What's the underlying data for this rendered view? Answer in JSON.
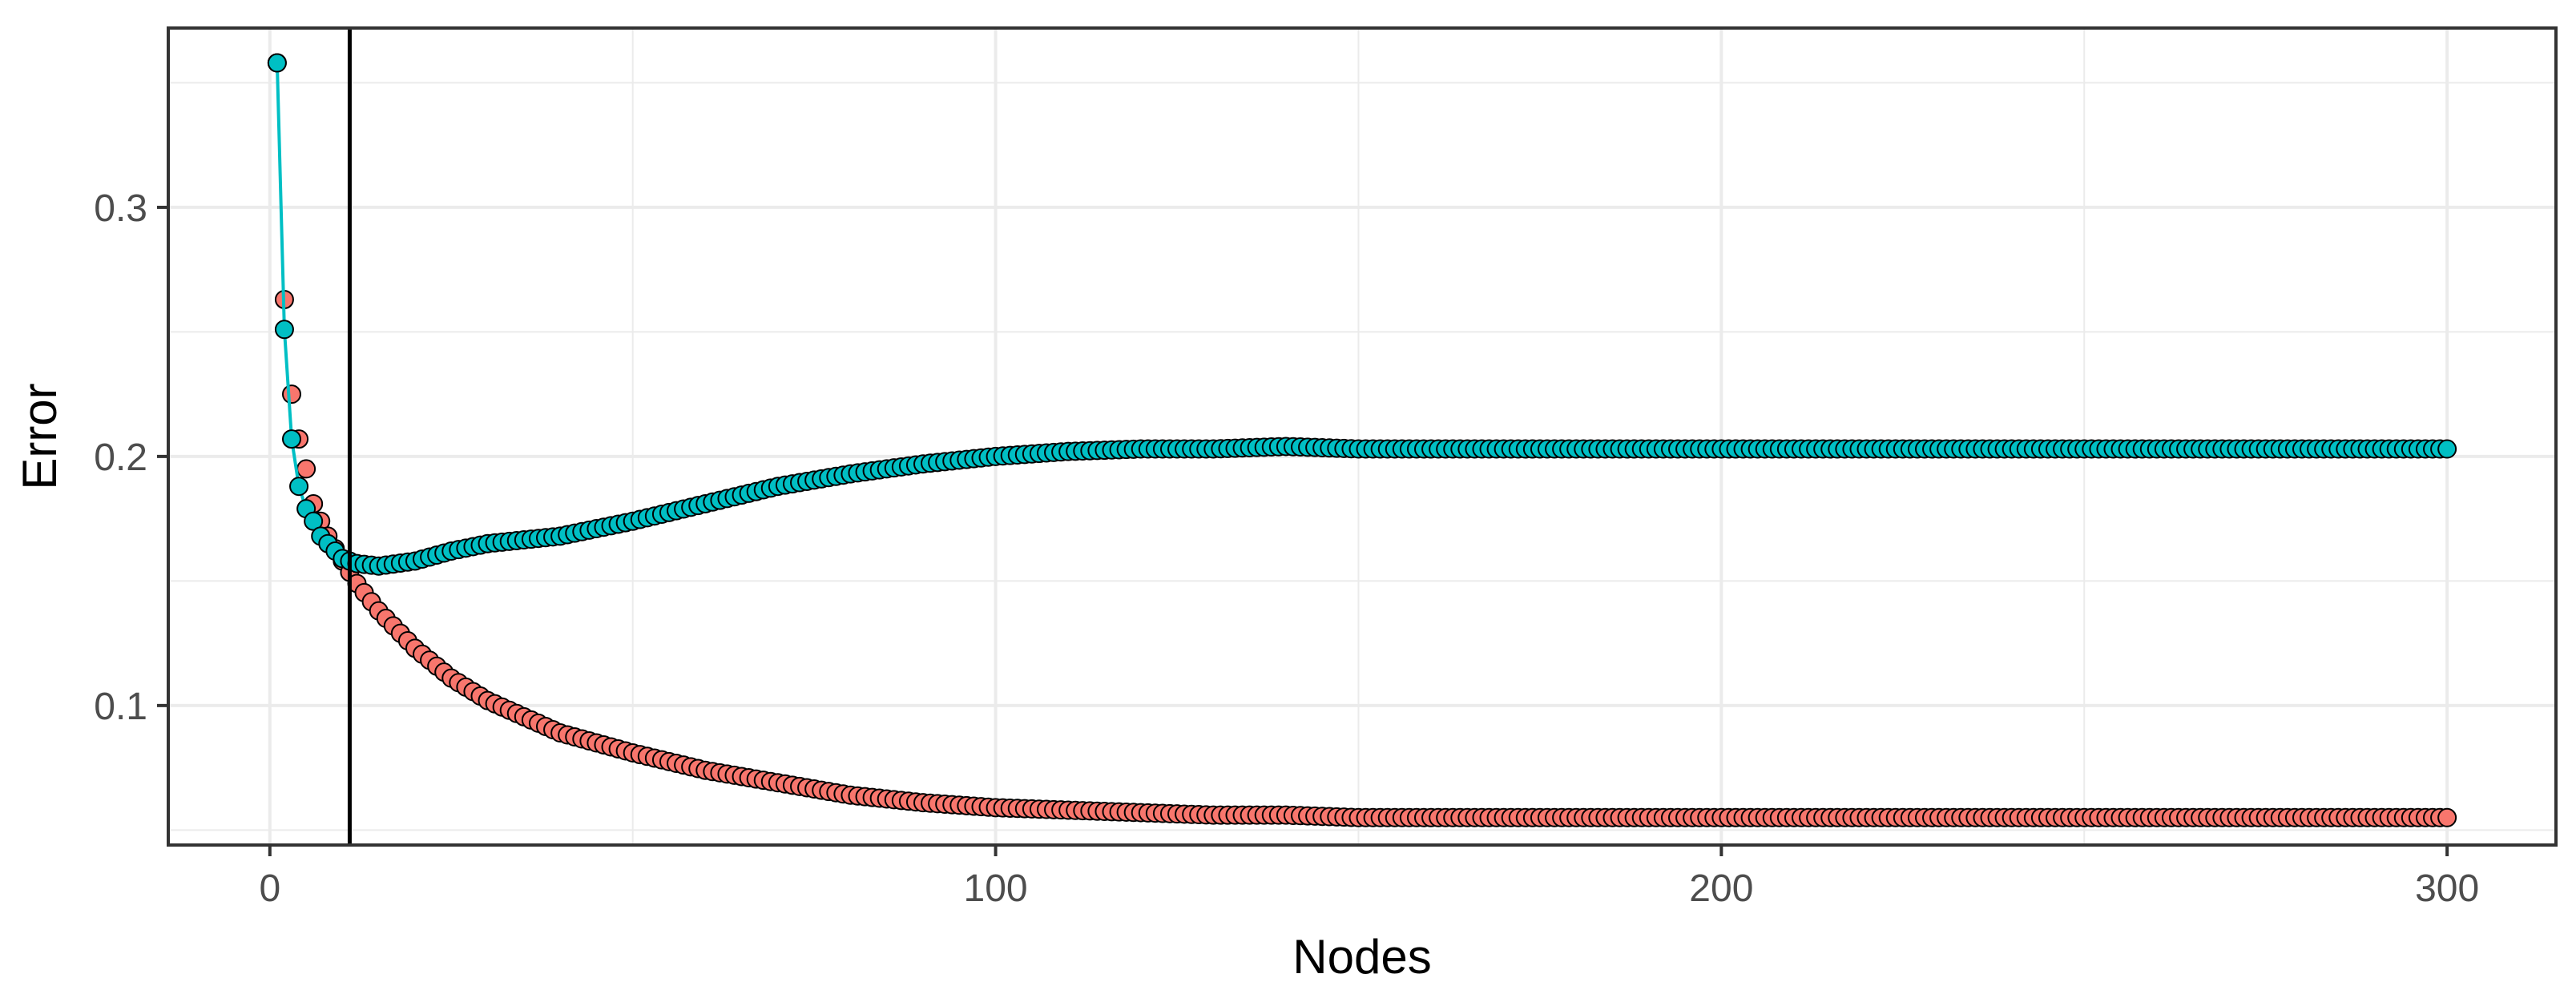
{
  "chart_data": {
    "type": "scatter",
    "title": "",
    "xlabel": "Nodes",
    "ylabel": "Error",
    "xlim": [
      -14,
      315
    ],
    "ylim": [
      0.044,
      0.372
    ],
    "x_ticks": [
      0,
      100,
      200,
      300
    ],
    "x_tick_labels": [
      "0",
      "100",
      "200",
      "300"
    ],
    "y_ticks": [
      0.1,
      0.2,
      0.3
    ],
    "y_tick_labels": [
      "0.1",
      "0.2",
      "0.3"
    ],
    "grid": true,
    "legend": "none",
    "vline_x": 11,
    "colors": {
      "red": "#F8766D",
      "teal": "#00BFC4",
      "outline": "#000000",
      "grid": "#ebebeb",
      "border": "#333333"
    },
    "series": [
      {
        "color": "#F8766D",
        "line": false,
        "points": [
          [
            1,
            0.358
          ],
          [
            2,
            0.263
          ],
          [
            3,
            0.225
          ],
          [
            4,
            0.207
          ],
          [
            5,
            0.195
          ],
          [
            6,
            0.181
          ],
          [
            7,
            0.174
          ],
          [
            8,
            0.168
          ],
          [
            9,
            0.163
          ],
          [
            10,
            0.158
          ],
          [
            12,
            0.149
          ],
          [
            15,
            0.138
          ],
          [
            20,
            0.123
          ],
          [
            25,
            0.111
          ],
          [
            30,
            0.102
          ],
          [
            40,
            0.089
          ],
          [
            50,
            0.081
          ],
          [
            60,
            0.074
          ],
          [
            70,
            0.069
          ],
          [
            80,
            0.064
          ],
          [
            90,
            0.061
          ],
          [
            100,
            0.059
          ],
          [
            110,
            0.058
          ],
          [
            120,
            0.057
          ],
          [
            130,
            0.056
          ],
          [
            140,
            0.056
          ],
          [
            150,
            0.055
          ],
          [
            175,
            0.055
          ],
          [
            200,
            0.055
          ],
          [
            225,
            0.055
          ],
          [
            250,
            0.055
          ],
          [
            275,
            0.055
          ],
          [
            300,
            0.055
          ]
        ]
      },
      {
        "color": "#00BFC4",
        "line": true,
        "points": [
          [
            1,
            0.358
          ],
          [
            2,
            0.251
          ],
          [
            3,
            0.207
          ],
          [
            4,
            0.188
          ],
          [
            5,
            0.179
          ],
          [
            6,
            0.174
          ],
          [
            7,
            0.168
          ],
          [
            8,
            0.165
          ],
          [
            9,
            0.162
          ],
          [
            10,
            0.159
          ],
          [
            12,
            0.157
          ],
          [
            15,
            0.156
          ],
          [
            20,
            0.158
          ],
          [
            25,
            0.162
          ],
          [
            30,
            0.165
          ],
          [
            40,
            0.168
          ],
          [
            50,
            0.174
          ],
          [
            60,
            0.181
          ],
          [
            70,
            0.188
          ],
          [
            80,
            0.193
          ],
          [
            90,
            0.197
          ],
          [
            100,
            0.2
          ],
          [
            110,
            0.202
          ],
          [
            120,
            0.203
          ],
          [
            130,
            0.203
          ],
          [
            140,
            0.204
          ],
          [
            150,
            0.203
          ],
          [
            175,
            0.203
          ],
          [
            200,
            0.203
          ],
          [
            225,
            0.203
          ],
          [
            250,
            0.203
          ],
          [
            275,
            0.203
          ],
          [
            300,
            0.203
          ]
        ]
      }
    ]
  }
}
